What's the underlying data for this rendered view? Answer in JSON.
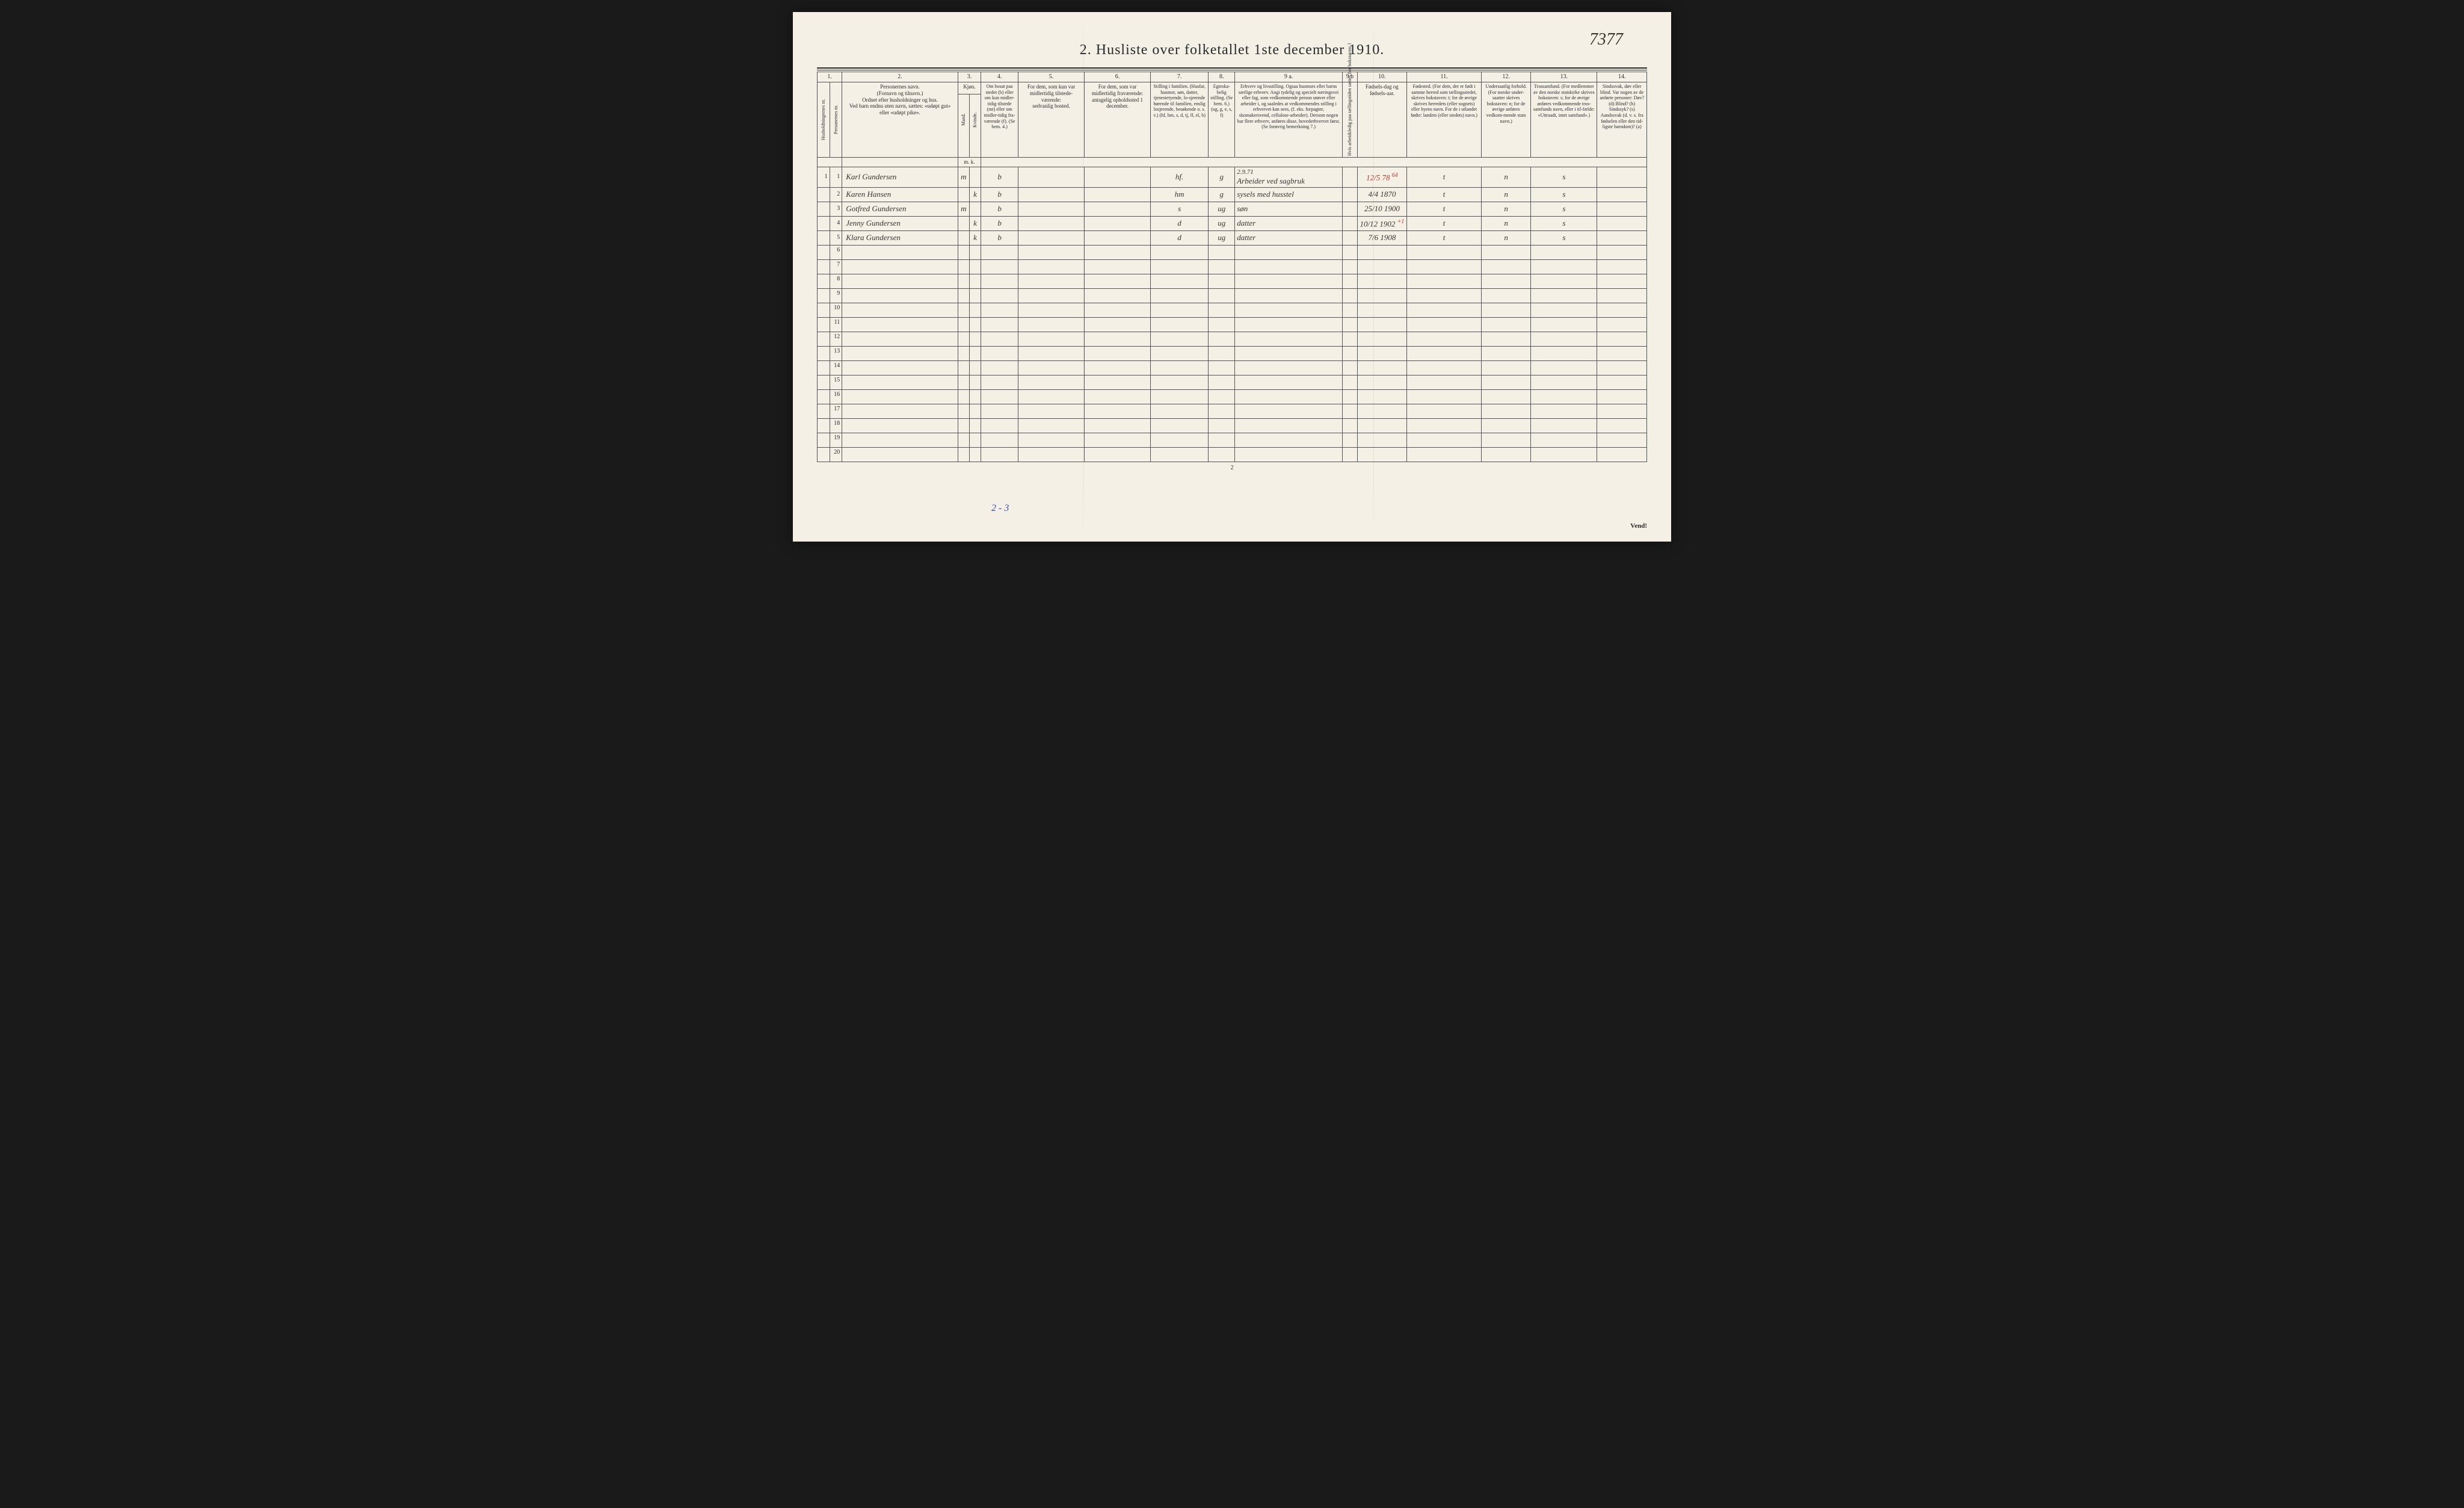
{
  "annotation_topright": "7377",
  "title": "2.  Husliste over folketallet 1ste december 1910.",
  "column_numbers": [
    "1.",
    "2.",
    "3.",
    "4.",
    "5.",
    "6.",
    "7.",
    "8.",
    "9 a.",
    "9 b",
    "10.",
    "11.",
    "12.",
    "13.",
    "14."
  ],
  "headers": {
    "c1a": "Husholdningernes nr.",
    "c1b": "Personernes nr.",
    "c2": "Personernes navn.\n(Fornavn og tilnavn.)\nOrdnet efter husholdninger og hus.\nVed barn endnu uten navn, sættes: «udøpt gut» eller «udøpt pike».",
    "c3": "Kjøn.",
    "c3m": "Mand.",
    "c3k": "Kvinde.",
    "c3mk": "m.   k.",
    "c4": "Om bosat paa stedet (b) eller om kun midler-tidig tilstede (mt) eller om midler-tidig fra-værende (f). (Se bem. 4.)",
    "c5": "For dem, som kun var midlertidig tilstede-værende:\nsedvanlig bosted.",
    "c6": "For dem, som var midlertidig fraværende:\nantagelig opholdssted 1 december.",
    "c7": "Stilling i familien.\n(Husfar, husmor, søn, datter, tjenestetyende, lo-sjerende hørende til familien, enslig losjerende, besøkende o. s. v.)\n(hf, hm, s, d, tj, fl, el, b)",
    "c8": "Egteska-belig stilling. (Se bem. 6.) (ug, g, e, s, f)",
    "c9a": "Erhverv og livsstilling.\nOgsaa husmors eller barns særlige erhverv. Angi tydelig og specielt næringsvei eller fag, som vedkommende person utøver eller arbeider i, og saaledes at vedkommendes stilling i erhvervet kan sees, (f. eks. forpagter, skomakersvend, cellulose-arbeider). Dersom nogen har flere erhverv, anføres disse, hovederhvervet først. (Se forøvrig bemerkning 7.)",
    "c9b": "Hvis arbeidsledig paa tællingstiden sættes her bokstaven: l",
    "c10": "Fødsels-dag og fødsels-aar.",
    "c11": "Fødested.\n(For dem, der er født i samme herred som tællingsstedet, skrives bokstaven: t; for de øvrige skrives herredets (eller sognets) eller byens navn. For de i utlandet fødte: landets (eller stedets) navn.)",
    "c12": "Undersaatlig forhold.\n(For norske under-saatter skrives bokstaven: n; for de øvrige anføres vedkom-mende stats navn.)",
    "c13": "Trossamfund.\n(For medlemmer av den norske statskirke skrives bokstaven: s; for de øvrige anføres vedkommende tros-samfunds navn, eller i til-fælde: «Uttraadt, intet samfund».)",
    "c14": "Sindssvak, døv eller blind.\nVar nogen av de anførte personer:\nDøv? (d)\nBlind? (b)\nSindssyk? (s)\nAandssvak (d. v. s. fra fødselen eller den tid-ligste barndom)? (a)"
  },
  "rows": [
    {
      "hh": "1",
      "pn": "1",
      "name": "Karl Gundersen",
      "sex_m": "m",
      "sex_k": "",
      "res": "b",
      "away_usual": "",
      "away_dec": "",
      "fam": "hf.",
      "mar": "g",
      "occ_prefix": "2.9.71",
      "occ": "Arbeider ved sagbruk",
      "led": "",
      "dob": "12/5 78",
      "dob_red": "64",
      "birthplace": "t",
      "nat": "n",
      "rel": "s",
      "dis": ""
    },
    {
      "hh": "",
      "pn": "2",
      "name": "Karen Hansen",
      "sex_m": "",
      "sex_k": "k",
      "res": "b",
      "away_usual": "",
      "away_dec": "",
      "fam": "hm",
      "mar": "g",
      "occ_prefix": "",
      "occ": "sysels med husstel",
      "led": "",
      "dob": "4/4 1870",
      "dob_red": "",
      "birthplace": "t",
      "nat": "n",
      "rel": "s",
      "dis": ""
    },
    {
      "hh": "",
      "pn": "3",
      "name": "Gotfred Gundersen",
      "sex_m": "m",
      "sex_k": "",
      "res": "b",
      "away_usual": "",
      "away_dec": "",
      "fam": "s",
      "mar": "ug",
      "occ_prefix": "",
      "occ": "søn",
      "led": "",
      "dob": "25/10 1900",
      "dob_red": "",
      "birthplace": "t",
      "nat": "n",
      "rel": "s",
      "dis": ""
    },
    {
      "hh": "",
      "pn": "4",
      "name": "Jenny Gundersen",
      "sex_m": "",
      "sex_k": "k",
      "res": "b",
      "away_usual": "",
      "away_dec": "",
      "fam": "d",
      "mar": "ug",
      "occ_prefix": "",
      "occ": "datter",
      "led": "",
      "dob": "10/12 1902",
      "dob_red": "+1",
      "birthplace": "t",
      "nat": "n",
      "rel": "s",
      "dis": ""
    },
    {
      "hh": "",
      "pn": "5",
      "name": "Klara Gundersen",
      "sex_m": "",
      "sex_k": "k",
      "res": "b",
      "away_usual": "",
      "away_dec": "",
      "fam": "d",
      "mar": "ug",
      "occ_prefix": "",
      "occ": "datter",
      "led": "",
      "dob": "7/6 1908",
      "dob_red": "",
      "birthplace": "t",
      "nat": "n",
      "rel": "s",
      "dis": ""
    }
  ],
  "empty_row_count": 15,
  "empty_row_start": 6,
  "footnote_blue": "2 - 3",
  "page_number": "2",
  "vend": "Vend!",
  "colors": {
    "paper": "#f4f0e6",
    "ink": "#2a2a2a",
    "pencil": "#3a3530",
    "red": "#c0392b",
    "blue": "#3b4fa8",
    "border": "#555"
  },
  "layout": {
    "col_widths_pct": [
      1.5,
      1.5,
      14,
      1.4,
      1.4,
      4.5,
      8,
      8,
      7,
      3.2,
      13,
      1.8,
      6,
      9,
      6,
      8,
      6
    ]
  }
}
